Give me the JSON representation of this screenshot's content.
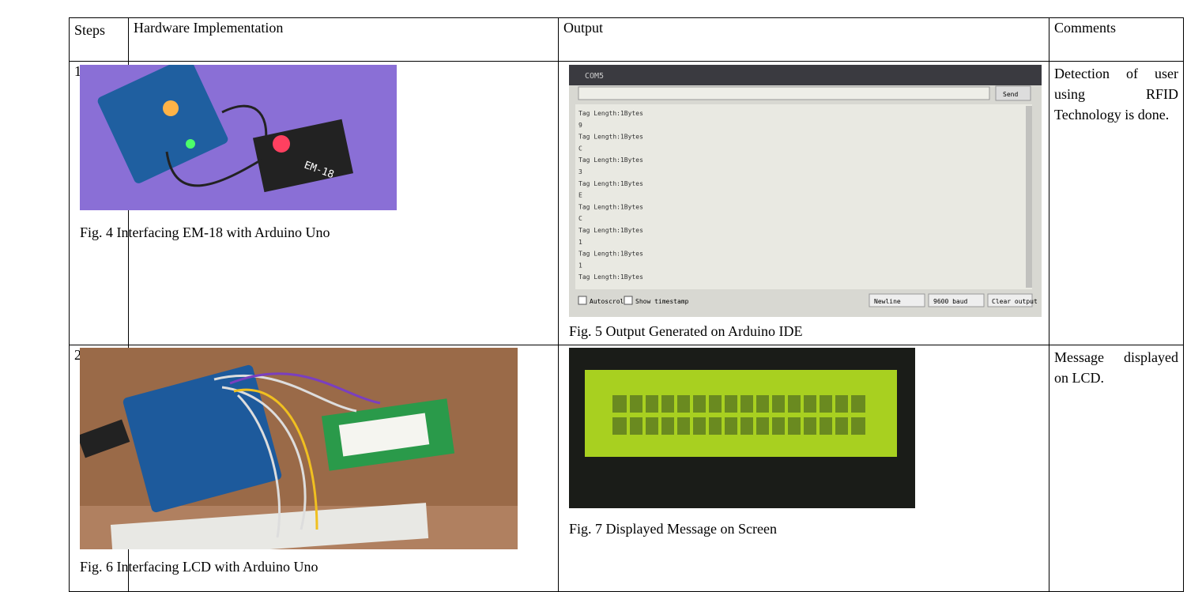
{
  "table": {
    "headers": [
      "Steps",
      "Hardware Implementation",
      "Output",
      "Comments"
    ],
    "rows": [
      {
        "step": "1",
        "hardware_caption": "Fig. 4 Interfacing EM-18 with Arduino Uno",
        "output_caption": "Fig. 5 Output Generated on Arduino IDE",
        "comment": "Detection of user using RFID Technology is done."
      },
      {
        "step": "2",
        "hardware_caption": "Fig. 6 Interfacing LCD with Arduino Uno",
        "output_caption": "Fig. 7 Displayed Message on Screen",
        "comment": "Message displayed on LCD."
      }
    ]
  },
  "module_label": "EM-18",
  "serial_monitor": {
    "title": "COM5",
    "send": "Send",
    "lines": [
      "Tag Length:1Bytes",
      "9",
      "Tag Length:1Bytes",
      "C",
      "Tag Length:1Bytes",
      "3",
      "Tag Length:1Bytes",
      "E",
      "Tag Length:1Bytes",
      "C",
      "Tag Length:1Bytes",
      "1",
      "Tag Length:1Bytes",
      "1",
      "Tag Length:1Bytes"
    ],
    "autoscroll": "Autoscroll",
    "timestamp": "Show timestamp",
    "line_ending": "Newline",
    "baud": "9600 baud",
    "clear": "Clear output"
  }
}
